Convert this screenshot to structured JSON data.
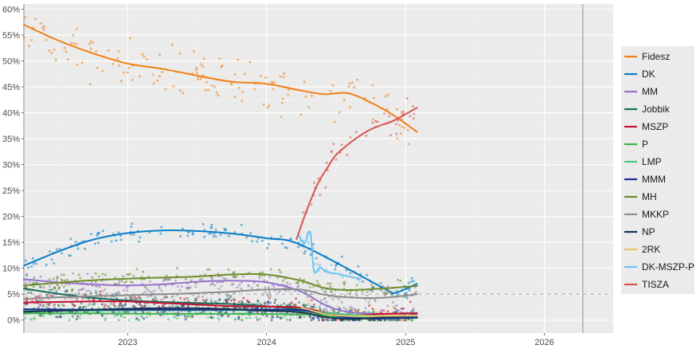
{
  "chart_data": {
    "type": "line",
    "title": "",
    "xlabel": "",
    "ylabel": "",
    "xlim": [
      "2022-04-03",
      "2026-07-01"
    ],
    "ylim": [
      -2.5,
      61
    ],
    "x_ticks": [
      {
        "value": "2023-01-01",
        "label": "2023"
      },
      {
        "value": "2024-01-01",
        "label": "2024"
      },
      {
        "value": "2025-01-01",
        "label": "2025"
      },
      {
        "value": "2026-01-01",
        "label": "2026"
      }
    ],
    "y_ticks": [
      {
        "value": 0,
        "label": "0%"
      },
      {
        "value": 5,
        "label": "5%"
      },
      {
        "value": 10,
        "label": "10%"
      },
      {
        "value": 15,
        "label": "15%"
      },
      {
        "value": 20,
        "label": "20%"
      },
      {
        "value": 25,
        "label": "25%"
      },
      {
        "value": 30,
        "label": "30%"
      },
      {
        "value": 35,
        "label": "35%"
      },
      {
        "value": 40,
        "label": "40%"
      },
      {
        "value": 45,
        "label": "45%"
      },
      {
        "value": 50,
        "label": "50%"
      },
      {
        "value": 55,
        "label": "55%"
      },
      {
        "value": 60,
        "label": "60%"
      }
    ],
    "grid": true,
    "legend_position": "right",
    "reference_lines": {
      "vertical": [
        "2022-04-03",
        "2026-04-12"
      ],
      "horizontal_dashed": 5
    },
    "series": [
      {
        "name": "Fidesz",
        "color": "#f07f13",
        "x": [
          "2022-04-03",
          "2022-07-01",
          "2022-10-01",
          "2023-01-01",
          "2023-04-01",
          "2023-07-01",
          "2023-10-01",
          "2024-01-01",
          "2024-04-01",
          "2024-06-01",
          "2024-08-01",
          "2024-10-01",
          "2024-12-01",
          "2025-01-31"
        ],
        "values": [
          57,
          54,
          51.5,
          49.5,
          48.5,
          47.2,
          46,
          45.6,
          44.3,
          43.6,
          43.8,
          42,
          39.5,
          36.3
        ]
      },
      {
        "name": "DK",
        "color": "#0a7dc4",
        "x": [
          "2022-04-03",
          "2022-07-01",
          "2022-10-01",
          "2023-01-01",
          "2023-04-01",
          "2023-07-01",
          "2023-10-01",
          "2024-01-01",
          "2024-04-01",
          "2024-11-01",
          "2024-12-01",
          "2025-01-31"
        ],
        "values": [
          10.5,
          13.2,
          15.5,
          16.8,
          17.3,
          17.2,
          16.7,
          15.8,
          14.5,
          6.3,
          5.2,
          7
        ]
      },
      {
        "name": "MM",
        "color": "#9673c9",
        "x": [
          "2022-04-03",
          "2022-07-01",
          "2022-10-01",
          "2023-01-01",
          "2023-04-01",
          "2023-07-01",
          "2023-10-01",
          "2024-01-01",
          "2024-04-01",
          "2024-06-01",
          "2024-08-01",
          "2024-11-01",
          "2025-01-31"
        ],
        "values": [
          7.9,
          7.3,
          6.9,
          6.7,
          6.9,
          7.4,
          7.6,
          7.3,
          5.5,
          3,
          1.6,
          1.2,
          1.4
        ]
      },
      {
        "name": "Jobbik",
        "color": "#1a6e5c",
        "x": [
          "2022-04-03",
          "2022-07-01",
          "2022-10-01",
          "2023-01-01",
          "2023-04-01",
          "2023-07-01",
          "2023-10-01",
          "2024-01-01",
          "2024-04-01",
          "2024-06-01",
          "2024-08-01",
          "2024-11-01",
          "2025-01-31"
        ],
        "values": [
          6.1,
          5.1,
          4.3,
          3.8,
          3.5,
          3.3,
          3.1,
          2.7,
          2,
          1,
          0.4,
          0.5,
          0.6
        ]
      },
      {
        "name": "MSZP",
        "color": "#c8102e",
        "x": [
          "2022-04-03",
          "2022-07-01",
          "2022-10-01",
          "2023-01-01",
          "2023-04-01",
          "2023-07-01",
          "2023-10-01",
          "2024-01-01",
          "2024-04-01",
          "2024-06-01",
          "2024-08-01",
          "2024-11-01",
          "2025-01-31"
        ],
        "values": [
          3.4,
          3.5,
          3.6,
          3.6,
          3.3,
          3,
          2.7,
          2.6,
          2.4,
          1.5,
          0.9,
          1.2,
          1.3
        ]
      },
      {
        "name": "P",
        "color": "#3cb54a",
        "x": [
          "2022-04-03",
          "2022-10-01",
          "2023-04-01",
          "2023-10-01",
          "2024-04-01",
          "2024-08-01",
          "2024-11-01",
          "2025-01-31"
        ],
        "values": [
          1.3,
          1.3,
          1.2,
          1.2,
          1.1,
          0.6,
          0.4,
          0.4
        ]
      },
      {
        "name": "LMP",
        "color": "#4cc38a",
        "x": [
          "2022-04-03",
          "2022-10-01",
          "2023-04-01",
          "2023-10-01",
          "2024-04-01",
          "2024-08-01",
          "2024-11-01",
          "2025-01-31"
        ],
        "values": [
          1.8,
          1.8,
          1.9,
          1.9,
          1.8,
          1.1,
          0.8,
          0.7
        ]
      },
      {
        "name": "MMM",
        "color": "#1a2f96",
        "x": [
          "2022-04-03",
          "2022-10-01",
          "2023-04-01",
          "2023-10-01",
          "2024-04-01",
          "2024-08-01",
          "2024-11-01",
          "2025-01-31"
        ],
        "values": [
          2.1,
          2,
          2,
          2,
          1.9,
          0.5,
          0.3,
          0.5
        ]
      },
      {
        "name": "MH",
        "color": "#6e8c2a",
        "x": [
          "2022-04-03",
          "2022-07-01",
          "2022-10-01",
          "2023-01-01",
          "2023-04-01",
          "2023-07-01",
          "2023-10-01",
          "2024-01-01",
          "2024-04-01",
          "2024-06-01",
          "2024-08-01",
          "2024-11-01",
          "2025-01-31"
        ],
        "values": [
          6.7,
          7.2,
          7.7,
          8,
          8.2,
          8.4,
          8.8,
          8.8,
          7.6,
          6.2,
          5.8,
          6.1,
          6.6
        ]
      },
      {
        "name": "MKKP",
        "color": "#8c8c8c",
        "x": [
          "2022-04-03",
          "2022-07-01",
          "2022-10-01",
          "2023-01-01",
          "2023-04-01",
          "2023-07-01",
          "2023-10-01",
          "2024-01-01",
          "2024-04-01",
          "2024-06-01",
          "2024-08-01",
          "2024-11-01",
          "2025-01-31"
        ],
        "values": [
          4.1,
          4.4,
          4.6,
          4.8,
          5,
          5.2,
          5.5,
          5.9,
          5.9,
          4.9,
          4.4,
          4.3,
          5
        ]
      },
      {
        "name": "NP",
        "color": "#17324f",
        "x": [
          "2022-04-03",
          "2022-07-01",
          "2022-10-01",
          "2023-01-01",
          "2023-04-01",
          "2023-07-01",
          "2023-10-01",
          "2024-01-01",
          "2024-04-01",
          "2024-06-01",
          "2024-08-01",
          "2024-11-01",
          "2025-01-31"
        ],
        "values": [
          1.6,
          1.8,
          2,
          2.2,
          2.3,
          2.3,
          2.1,
          1.8,
          1.5,
          0.6,
          0.2,
          0.5,
          0.9
        ]
      },
      {
        "name": "2RK",
        "color": "#e6c26a",
        "x": [
          "2024-04-01",
          "2024-06-01",
          "2024-08-01",
          "2024-11-01",
          "2025-01-31"
        ],
        "values": [
          2.5,
          1.2,
          0.8,
          0.8,
          0.9
        ]
      },
      {
        "name": "DK-MSZP-P",
        "color": "#6ec3f5",
        "x": [
          "2024-03-25",
          "2024-04-10",
          "2024-04-25",
          "2024-05-05",
          "2024-05-20",
          "2024-06-01",
          "2024-06-20",
          "2024-07-10",
          "2024-08-01",
          "2024-08-20",
          "2024-09-05"
        ],
        "values": [
          16.5,
          14.8,
          17,
          9.5,
          10.2,
          9.6,
          9.1,
          8.9,
          8.5,
          8.2,
          8
        ]
      },
      {
        "name": "TISZA",
        "color": "#d9544e",
        "x": [
          "2024-03-20",
          "2024-04-10",
          "2024-05-01",
          "2024-05-20",
          "2024-06-10",
          "2024-07-01",
          "2024-08-01",
          "2024-09-01",
          "2024-10-01",
          "2024-11-01",
          "2024-12-01",
          "2025-01-31"
        ],
        "values": [
          15.6,
          20,
          24,
          27,
          29.5,
          31.8,
          33.8,
          35.5,
          36.8,
          37.7,
          38.5,
          41
        ]
      }
    ]
  }
}
